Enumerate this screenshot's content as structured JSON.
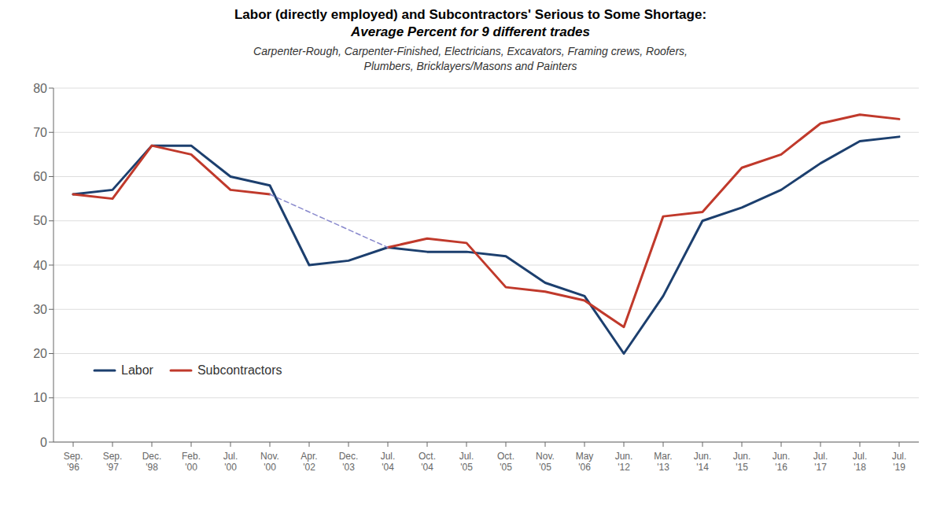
{
  "chart_data": {
    "type": "line",
    "title": "Labor (directly employed) and Subcontractors' Serious to Some Shortage:\nAverage Percent for 9 different trades",
    "subtitle": "Carpenter-Rough, Carpenter-Finished, Electricians, Excavators, Framing crews, Roofers,\nPlumbers, Bricklayers/Masons and Painters",
    "categories": [
      "Sep.\n'96",
      "Sep.\n'97",
      "Dec.\n'98",
      "Feb.\n'00",
      "Jul.\n'00",
      "Nov.\n'00",
      "Apr.\n'02",
      "Dec.\n'03",
      "Jul.\n'04",
      "Oct.\n'04",
      "Jul.\n'05",
      "Oct.\n'05",
      "Nov.\n'05",
      "May\n'06",
      "Jun.\n'12",
      "Mar.\n'13",
      "Jun.\n'14",
      "Jun.\n'15",
      "Jun.\n'16",
      "Jul.\n'17",
      "Jul.\n'18",
      "Jul.\n'19"
    ],
    "series": [
      {
        "name": "Labor",
        "color": "#1c3f6e",
        "line_style": "solid",
        "values": [
          56,
          57,
          67,
          67,
          60,
          58,
          40,
          41,
          44,
          43,
          43,
          42,
          36,
          33,
          20,
          33,
          50,
          53,
          57,
          63,
          68,
          69
        ]
      },
      {
        "name": "Subcontractors",
        "color": "#c0392b",
        "line_style": "solid",
        "values": [
          56,
          55,
          67,
          65,
          57,
          56,
          null,
          null,
          44,
          46,
          45,
          35,
          34,
          32,
          26,
          51,
          52,
          62,
          65,
          72,
          74,
          73
        ]
      },
      {
        "color": "#8888cc",
        "line_style": "dashed",
        "values": [
          null,
          null,
          null,
          null,
          null,
          56,
          null,
          null,
          44,
          null,
          null,
          null,
          null,
          null,
          null,
          null,
          null,
          null,
          null,
          null,
          null,
          null
        ]
      }
    ],
    "ylim": [
      0,
      80
    ],
    "yticks": [
      0,
      10,
      20,
      30,
      40,
      50,
      60,
      70,
      80
    ],
    "grid": true,
    "legend": "lower left"
  }
}
